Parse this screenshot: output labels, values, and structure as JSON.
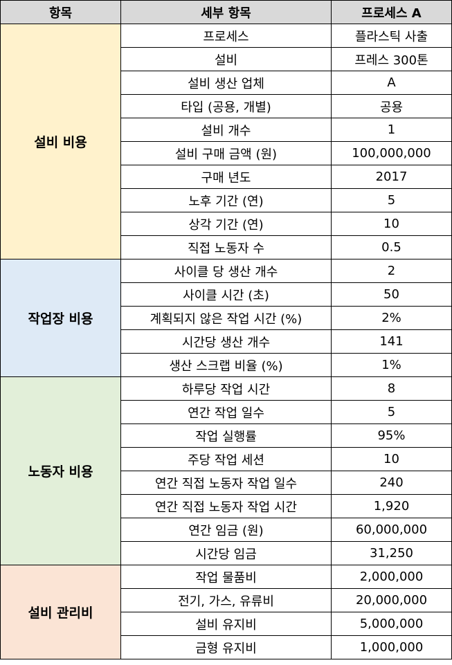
{
  "headers": [
    "항목",
    "세부 항목",
    "프로세스 A"
  ],
  "sections": [
    {
      "category": "설비 비용",
      "color": "#fff2cc",
      "rows": [
        {
          "item": "프로세스",
          "value": "플라스틱 사출"
        },
        {
          "item": "설비",
          "value": "프레스 300톤"
        },
        {
          "item": "설비 생산 업체",
          "value": "A"
        },
        {
          "item": "타입 (공용, 개별)",
          "value": "공용"
        },
        {
          "item": "설비 개수",
          "value": "1"
        },
        {
          "item": "설비 구매 금액 (원)",
          "value": "100,000,000"
        },
        {
          "item": "구매 년도",
          "value": "2017"
        },
        {
          "item": "노후 기간 (연)",
          "value": "5"
        },
        {
          "item": "상각 기간 (연)",
          "value": "10"
        },
        {
          "item": "직접 노동자 수",
          "value": "0.5"
        }
      ]
    },
    {
      "category": "작업장 비용",
      "color": "#deeaf6",
      "rows": [
        {
          "item": "사이클 당 생산 개수",
          "value": "2"
        },
        {
          "item": "사이클 시간 (초)",
          "value": "50"
        },
        {
          "item": "계획되지 않은 작업 시간 (%)",
          "value": "2%"
        },
        {
          "item": "시간당 생산 개수",
          "value": "141"
        },
        {
          "item": "생산 스크랩 비율 (%)",
          "value": "1%"
        }
      ]
    },
    {
      "category": "노동자 비용",
      "color": "#e2efd9",
      "rows": [
        {
          "item": "하루당 작업 시간",
          "value": "8"
        },
        {
          "item": "연간 작업 일수",
          "value": "5"
        },
        {
          "item": "작업 실행률",
          "value": "95%"
        },
        {
          "item": "주당 작업 세션",
          "value": "10"
        },
        {
          "item": "연간 직접 노동자 작업 일수",
          "value": "240"
        },
        {
          "item": "연간 직접 노동자 작업 시간",
          "value": "1,920"
        },
        {
          "item": "연간 임금 (원)",
          "value": "60,000,000"
        },
        {
          "item": "시간당 임금",
          "value": "31,250"
        }
      ]
    },
    {
      "category": "설비 관리비",
      "color": "#fbe4d5",
      "rows": [
        {
          "item": "작업 물품비",
          "value": "2,000,000"
        },
        {
          "item": "전기, 가스, 유류비",
          "value": "20,000,000"
        },
        {
          "item": "설비 유지비",
          "value": "5,000,000"
        },
        {
          "item": "금형 유지비",
          "value": "1,000,000"
        }
      ]
    }
  ]
}
